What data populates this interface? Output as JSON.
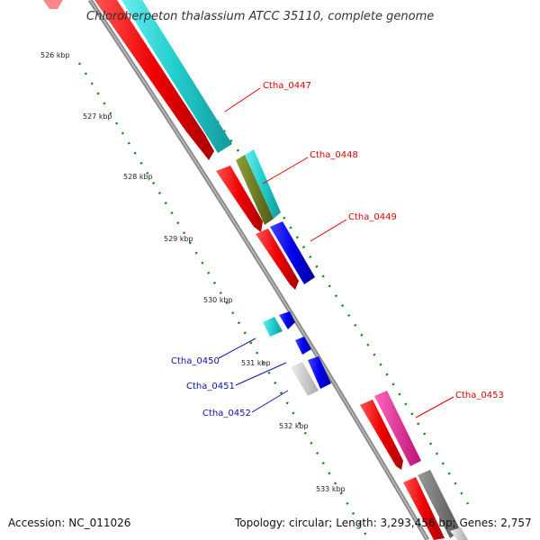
{
  "title": "Chloroherpeton thalassium ATCC 35110, complete genome",
  "accession": "Accession: NC_011026",
  "summary": "Topology: circular; Length: 3,293,456 bp; Genes: 2,757",
  "ticks": [
    "526 kbp",
    "527 kbp",
    "528 kbp",
    "529 kbp",
    "530 kbp",
    "531 kbp",
    "532 kbp",
    "533 kbp"
  ],
  "genes": {
    "Ctha_0447": "Ctha_0447",
    "Ctha_0448": "Ctha_0448",
    "Ctha_0449": "Ctha_0449",
    "Ctha_0450": "Ctha_0450",
    "Ctha_0451": "Ctha_0451",
    "Ctha_0452": "Ctha_0452",
    "Ctha_0453": "Ctha_0453"
  },
  "colors": {
    "cds_red": "#ee0000",
    "cyan": "#22cccc",
    "olive": "#6b7a1f",
    "blue": "#0000ee",
    "magenta": "#ee2299",
    "gray": "#777777",
    "light_gray": "#cccccc",
    "tick_green": "#118811",
    "backbone": "#888888",
    "label_red": "#dd0000",
    "label_blue": "#1010aa"
  }
}
